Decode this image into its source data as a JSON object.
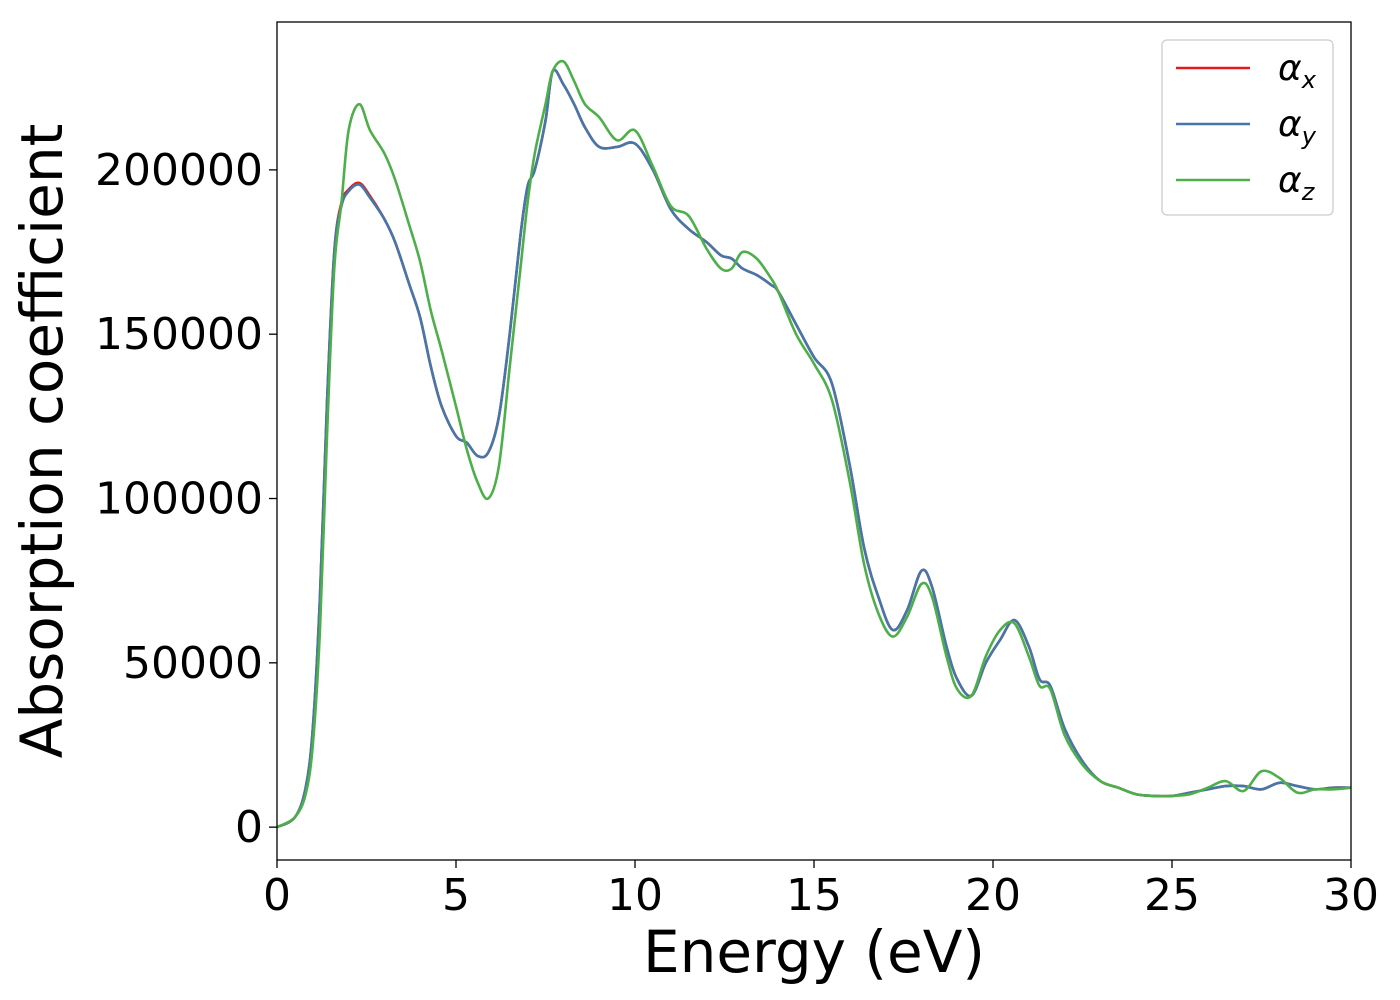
{
  "chart_data": {
    "type": "line",
    "xlabel": "Energy (eV)",
    "ylabel": "Absorption coefficient",
    "xlim": [
      0,
      30
    ],
    "ylim": [
      -10000,
      245000
    ],
    "xticks": [
      0,
      5,
      10,
      15,
      20,
      25,
      30
    ],
    "xtick_labels": [
      "0",
      "5",
      "10",
      "15",
      "20",
      "25",
      "30"
    ],
    "yticks": [
      0,
      50000,
      100000,
      150000,
      200000
    ],
    "ytick_labels": [
      "0",
      "50000",
      "100000",
      "150000",
      "200000"
    ],
    "grid": false,
    "legend_position": "top-right",
    "series": [
      {
        "name": "α_x",
        "label_main": "α",
        "label_sub": "x",
        "color": "#e41a1c",
        "x": [
          0,
          0.5,
          0.8,
          1.0,
          1.2,
          1.4,
          1.6,
          1.8,
          2.0,
          2.3,
          2.6,
          3.0,
          3.3,
          3.7,
          4.0,
          4.3,
          4.6,
          5.0,
          5.3,
          5.6,
          5.9,
          6.2,
          6.5,
          6.8,
          7.0,
          7.2,
          7.5,
          7.7,
          8.0,
          8.3,
          8.6,
          9.0,
          9.5,
          10.0,
          10.5,
          11.0,
          11.5,
          12.0,
          12.4,
          12.7,
          13.0,
          13.4,
          13.8,
          14.0,
          14.5,
          15.0,
          15.5,
          16.0,
          16.4,
          16.8,
          17.2,
          17.6,
          18.0,
          18.3,
          18.7,
          19.0,
          19.4,
          19.8,
          20.2,
          20.6,
          21.0,
          21.3,
          21.6,
          22.0,
          22.5,
          23.0,
          23.5,
          24.0,
          24.5,
          25.0,
          25.5,
          26.0,
          26.5,
          27.0,
          27.5,
          28.0,
          28.5,
          29.0,
          29.5,
          30.0
        ],
        "y": [
          0,
          3000,
          12000,
          30000,
          70000,
          130000,
          175000,
          190000,
          194000,
          196000,
          192000,
          185000,
          178000,
          165000,
          155000,
          140000,
          128000,
          119000,
          117000,
          113000,
          114000,
          125000,
          150000,
          180000,
          195000,
          200000,
          215000,
          230000,
          226000,
          220000,
          213000,
          207000,
          207000,
          208000,
          200000,
          188000,
          182000,
          178000,
          174000,
          173000,
          170000,
          168000,
          165000,
          163000,
          153000,
          143000,
          135000,
          110000,
          85000,
          70000,
          60000,
          66000,
          78000,
          73000,
          55000,
          45000,
          40000,
          50000,
          57000,
          63000,
          55000,
          45000,
          43000,
          30000,
          20000,
          14000,
          12000,
          10000,
          9500,
          9500,
          10500,
          11500,
          12500,
          12500,
          11500,
          13500,
          12500,
          11500,
          12000,
          12000
        ]
      },
      {
        "name": "α_y",
        "label_main": "α",
        "label_sub": "y",
        "color": "#4477aa",
        "x": [
          0,
          0.5,
          0.8,
          1.0,
          1.2,
          1.4,
          1.6,
          1.8,
          2.0,
          2.3,
          2.6,
          3.0,
          3.3,
          3.7,
          4.0,
          4.3,
          4.6,
          5.0,
          5.3,
          5.6,
          5.9,
          6.2,
          6.5,
          6.8,
          7.0,
          7.2,
          7.5,
          7.7,
          8.0,
          8.3,
          8.6,
          9.0,
          9.5,
          10.0,
          10.5,
          11.0,
          11.5,
          12.0,
          12.4,
          12.7,
          13.0,
          13.4,
          13.8,
          14.0,
          14.5,
          15.0,
          15.5,
          16.0,
          16.4,
          16.8,
          17.2,
          17.6,
          18.0,
          18.3,
          18.7,
          19.0,
          19.4,
          19.8,
          20.2,
          20.6,
          21.0,
          21.3,
          21.6,
          22.0,
          22.5,
          23.0,
          23.5,
          24.0,
          24.5,
          25.0,
          25.5,
          26.0,
          26.5,
          27.0,
          27.5,
          28.0,
          28.5,
          29.0,
          29.5,
          30.0
        ],
        "y": [
          0,
          3000,
          12000,
          30000,
          70000,
          130000,
          175000,
          189000,
          193500,
          195500,
          191500,
          185000,
          178000,
          165000,
          155000,
          140000,
          128000,
          119000,
          117000,
          113000,
          114000,
          125000,
          150000,
          180000,
          195000,
          200000,
          215000,
          230000,
          226000,
          220000,
          213000,
          207000,
          207000,
          208000,
          200000,
          188000,
          182000,
          178000,
          174000,
          173000,
          170000,
          168000,
          165000,
          163000,
          153000,
          143000,
          135000,
          110000,
          85000,
          70000,
          60000,
          66000,
          78000,
          73000,
          55000,
          45000,
          40000,
          50000,
          57000,
          63000,
          55000,
          45000,
          43000,
          30000,
          20000,
          14000,
          12000,
          10000,
          9500,
          9500,
          10500,
          11500,
          12500,
          12500,
          11500,
          13500,
          12500,
          11500,
          12000,
          12000
        ]
      },
      {
        "name": "α_z",
        "label_main": "α",
        "label_sub": "z",
        "color": "#4daf4a",
        "x": [
          0,
          0.5,
          0.8,
          1.0,
          1.2,
          1.4,
          1.6,
          1.8,
          2.0,
          2.3,
          2.6,
          3.0,
          3.3,
          3.7,
          4.0,
          4.3,
          4.6,
          5.0,
          5.3,
          5.6,
          5.9,
          6.2,
          6.5,
          6.8,
          7.0,
          7.2,
          7.5,
          7.7,
          8.0,
          8.3,
          8.6,
          9.0,
          9.5,
          10.0,
          10.5,
          11.0,
          11.5,
          12.0,
          12.4,
          12.7,
          13.0,
          13.4,
          13.8,
          14.0,
          14.5,
          15.0,
          15.5,
          16.0,
          16.4,
          16.8,
          17.2,
          17.6,
          18.0,
          18.3,
          18.7,
          19.0,
          19.4,
          19.8,
          20.2,
          20.6,
          21.0,
          21.3,
          21.6,
          22.0,
          22.5,
          23.0,
          23.5,
          24.0,
          24.5,
          25.0,
          25.5,
          26.0,
          26.5,
          27.0,
          27.5,
          28.0,
          28.5,
          29.0,
          29.5,
          30.0
        ],
        "y": [
          0,
          3000,
          10000,
          25000,
          60000,
          120000,
          170000,
          190000,
          212000,
          220000,
          212000,
          205000,
          197000,
          183000,
          172000,
          157000,
          145000,
          128000,
          115000,
          105000,
          100000,
          110000,
          140000,
          170000,
          190000,
          205000,
          220000,
          230000,
          233000,
          227000,
          220000,
          216000,
          209000,
          212000,
          201000,
          189000,
          186000,
          176000,
          170000,
          170000,
          175000,
          173000,
          167000,
          163000,
          150000,
          141000,
          130000,
          105000,
          80000,
          65000,
          58000,
          64000,
          74000,
          70000,
          52000,
          42000,
          40000,
          52000,
          60000,
          62000,
          52000,
          43000,
          42000,
          28000,
          19000,
          14000,
          12000,
          10000,
          9500,
          9500,
          10000,
          12000,
          14000,
          11000,
          17000,
          15000,
          10500,
          11500,
          11500,
          12000
        ]
      }
    ]
  }
}
